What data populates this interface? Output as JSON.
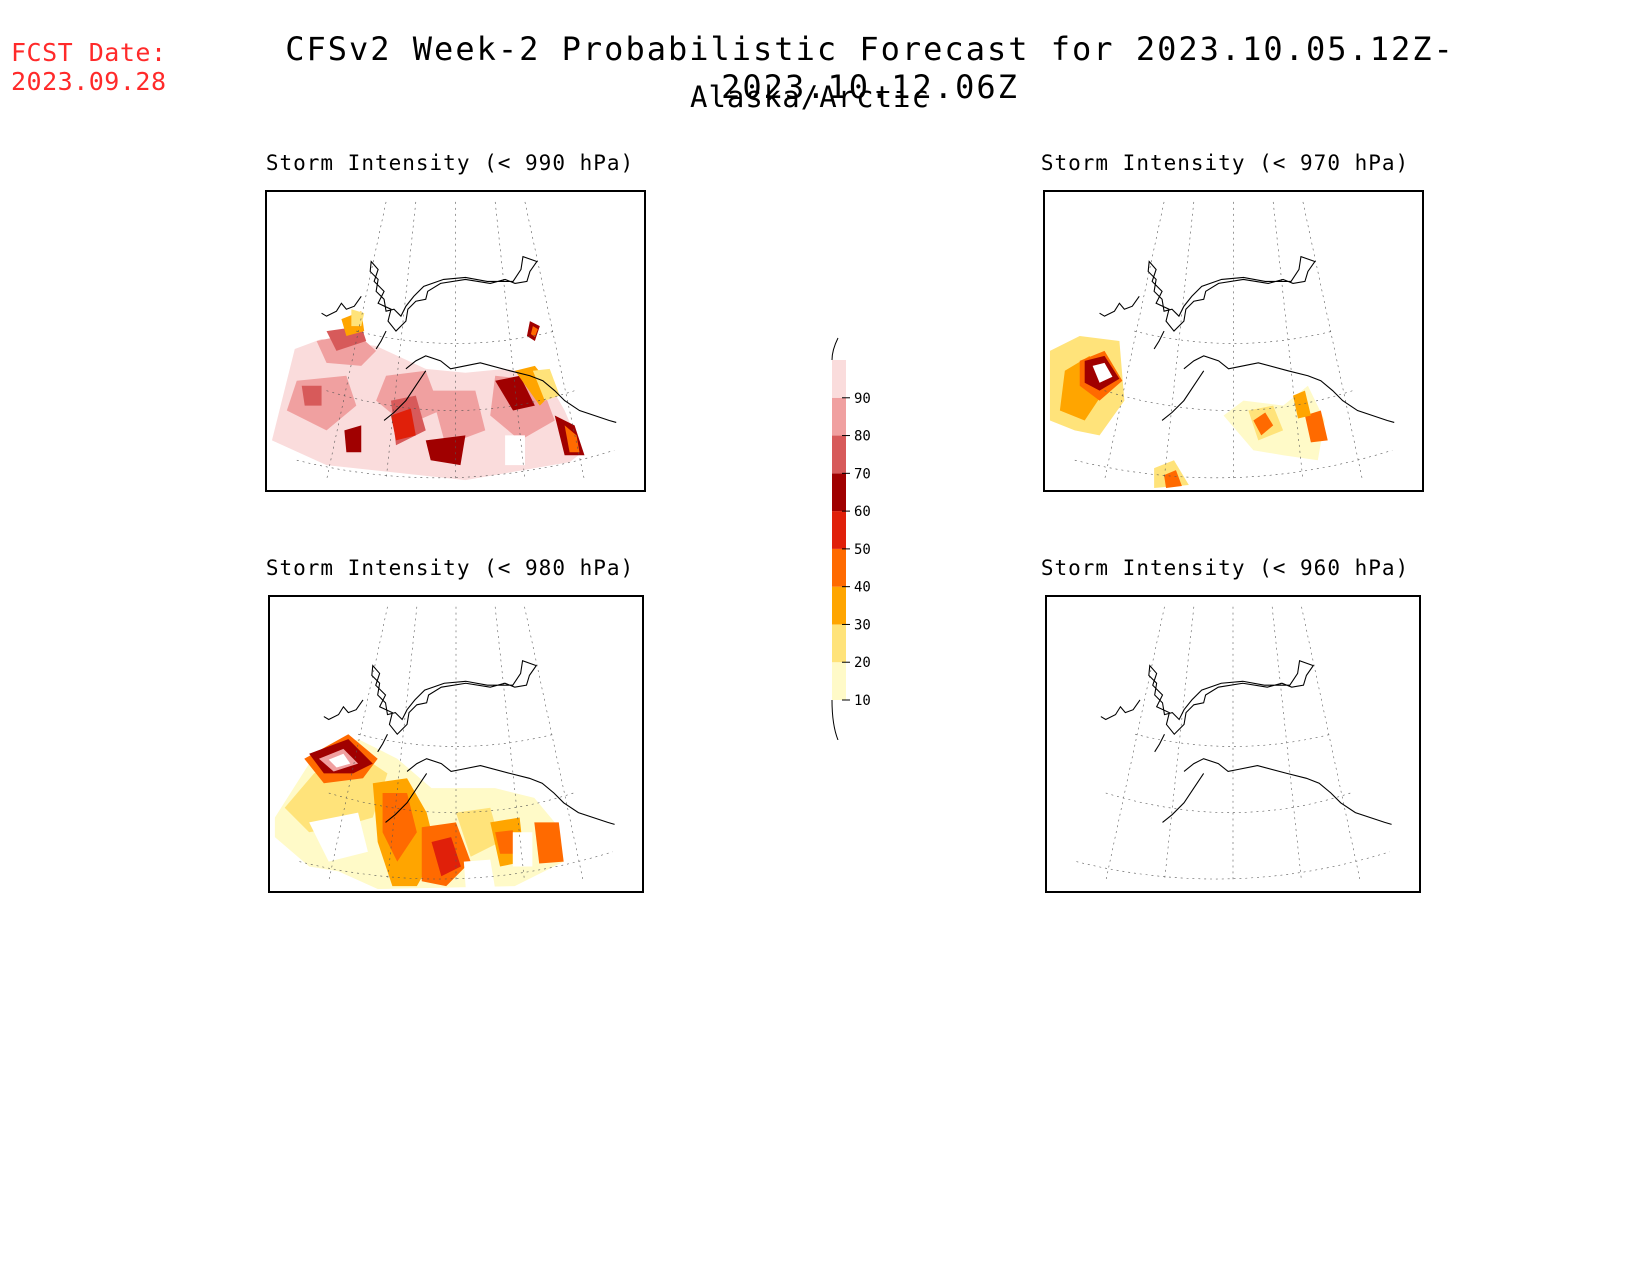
{
  "header": {
    "fcst_label": "FCST Date:",
    "fcst_date": "2023.09.28",
    "title": "CFSv2 Week-2 Probabilistic Forecast for 2023.10.05.12Z-2023.10.12.06Z",
    "subtitle": "Alaska/Arctic"
  },
  "panels": [
    {
      "title": "Storm Intensity (< 990 hPa)"
    },
    {
      "title": "Storm Intensity (< 970 hPa)"
    },
    {
      "title": "Storm Intensity (< 980 hPa)"
    },
    {
      "title": "Storm Intensity (< 960 hPa)"
    }
  ],
  "colorbar": {
    "ticks": [
      "10",
      "20",
      "30",
      "40",
      "50",
      "60",
      "70",
      "80",
      "90"
    ],
    "colors": [
      "#fffac8",
      "#ffe37a",
      "#ffa500",
      "#ff6a00",
      "#e0200a",
      "#a00000",
      "#d75a5a",
      "#f0a0a0",
      "#fadcdc"
    ],
    "min_color": "#ffffff"
  }
}
